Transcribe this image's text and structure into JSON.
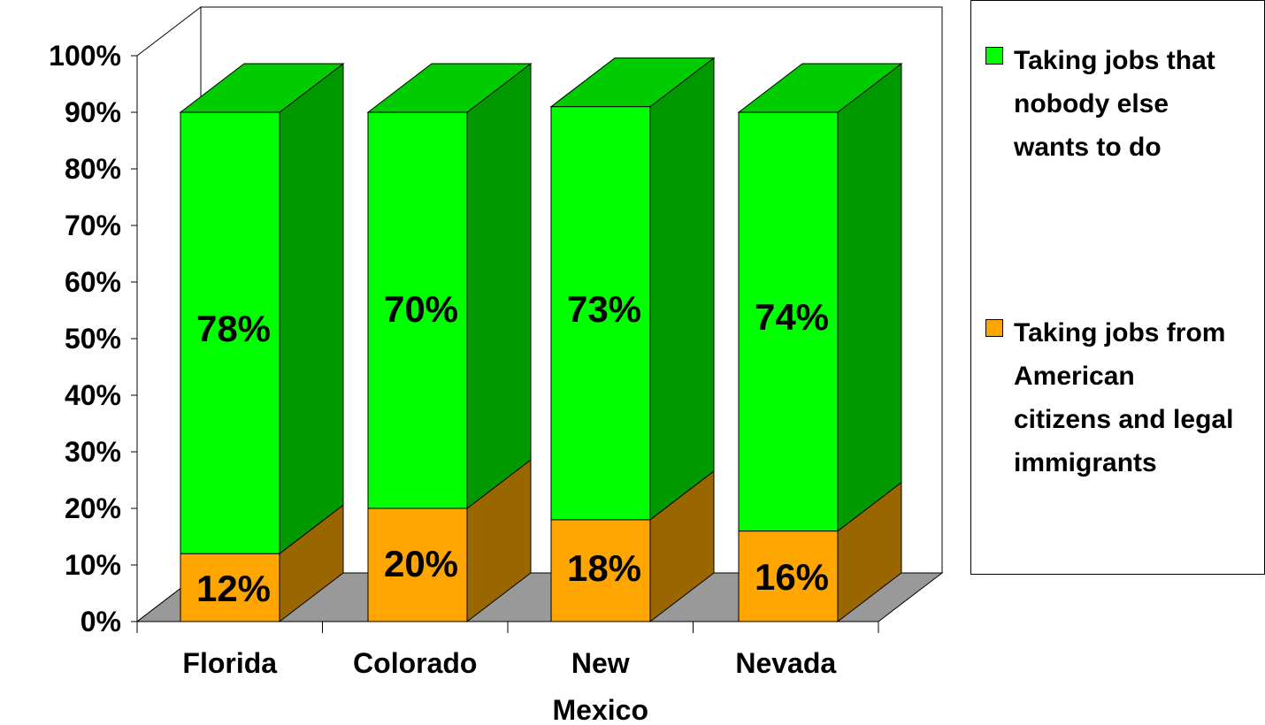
{
  "chart_data": {
    "type": "bar",
    "stacked": true,
    "three_d": true,
    "categories": [
      "Florida",
      "Colorado",
      "New Mexico",
      "Nevada"
    ],
    "series": [
      {
        "name": "Taking jobs from American citizens and legal immigrants",
        "values": [
          12,
          20,
          18,
          16
        ],
        "color": "#FFA500"
      },
      {
        "name": "Taking jobs that nobody else wants to do",
        "values": [
          78,
          70,
          73,
          74
        ],
        "color": "#00FF00"
      }
    ],
    "data_labels": [
      [
        "12%",
        "20%",
        "18%",
        "16%"
      ],
      [
        "78%",
        "70%",
        "73%",
        "74%"
      ]
    ],
    "y_ticks": [
      "0%",
      "10%",
      "20%",
      "30%",
      "40%",
      "50%",
      "60%",
      "70%",
      "80%",
      "90%",
      "100%"
    ],
    "ylim": [
      0,
      100
    ],
    "legend_position": "right",
    "grid": false,
    "colors": {
      "front_green": "#00FF00",
      "side_green": "#009900",
      "top_green": "#00CC00",
      "front_orange": "#FFA500",
      "side_orange": "#996600",
      "floor": "#999999"
    }
  },
  "legend": {
    "items": [
      {
        "label": "Taking jobs that nobody else wants to do",
        "color": "#00FF00"
      },
      {
        "label": "Taking jobs from American citizens and legal immigrants",
        "color": "#FFA500"
      }
    ]
  }
}
